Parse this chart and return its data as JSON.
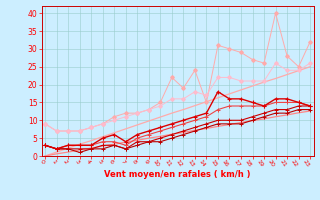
{
  "x": [
    0,
    1,
    2,
    3,
    4,
    5,
    6,
    7,
    8,
    9,
    10,
    11,
    12,
    13,
    14,
    15,
    16,
    17,
    18,
    19,
    20,
    21,
    22,
    23
  ],
  "line_straight_low": [
    0,
    0.6,
    1.1,
    1.7,
    2.2,
    2.8,
    3.3,
    3.9,
    4.4,
    5.0,
    5.5,
    6.1,
    6.6,
    7.2,
    7.7,
    8.3,
    8.8,
    9.4,
    9.9,
    10.4,
    11.0,
    11.5,
    12.1,
    12.6
  ],
  "line_straight_high": [
    0,
    1.1,
    2.2,
    3.3,
    4.3,
    5.4,
    6.5,
    7.6,
    8.7,
    9.8,
    10.9,
    12.0,
    13.0,
    14.1,
    15.2,
    16.3,
    17.4,
    18.5,
    19.6,
    20.7,
    21.7,
    22.8,
    23.9,
    25.0
  ],
  "line_scatter_top": [
    9,
    7,
    7,
    7,
    8,
    9,
    11,
    12,
    12,
    13,
    15,
    22,
    19,
    24,
    15,
    31,
    30,
    29,
    27,
    26,
    40,
    28,
    25,
    32
  ],
  "line_scatter_mid": [
    9,
    7,
    7,
    7,
    8,
    9,
    10,
    11,
    12,
    13,
    14,
    16,
    16,
    18,
    17,
    22,
    22,
    21,
    21,
    21,
    26,
    24,
    24,
    26
  ],
  "line_red_spiky": [
    3,
    2,
    3,
    3,
    3,
    5,
    6,
    4,
    6,
    7,
    8,
    9,
    10,
    11,
    12,
    18,
    16,
    16,
    15,
    14,
    16,
    16,
    15,
    14
  ],
  "line_red_mid": [
    3,
    2,
    3,
    3,
    3,
    4,
    4,
    3,
    5,
    6,
    7,
    8,
    9,
    10,
    11,
    13,
    14,
    14,
    14,
    14,
    15,
    15,
    15,
    14
  ],
  "line_red_low2": [
    3,
    2,
    2,
    2,
    2,
    3,
    3,
    2,
    4,
    4,
    5,
    6,
    7,
    8,
    9,
    10,
    10,
    10,
    11,
    12,
    13,
    13,
    14,
    14
  ],
  "line_red_low1": [
    3,
    2,
    2,
    1,
    2,
    2,
    3,
    2,
    3,
    4,
    4,
    5,
    6,
    7,
    8,
    9,
    9,
    9,
    10,
    11,
    12,
    12,
    13,
    13
  ],
  "bg_color": "#cceeff",
  "grid_color": "#99cccc",
  "ylim": [
    0,
    42
  ],
  "xlim": [
    -0.3,
    23.3
  ],
  "yticks": [
    0,
    5,
    10,
    15,
    20,
    25,
    30,
    35,
    40
  ],
  "xticks": [
    0,
    1,
    2,
    3,
    4,
    5,
    6,
    7,
    8,
    9,
    10,
    11,
    12,
    13,
    14,
    15,
    16,
    17,
    18,
    19,
    20,
    21,
    22,
    23
  ],
  "xlabel": "Vent moyen/en rafales ( km/h )"
}
